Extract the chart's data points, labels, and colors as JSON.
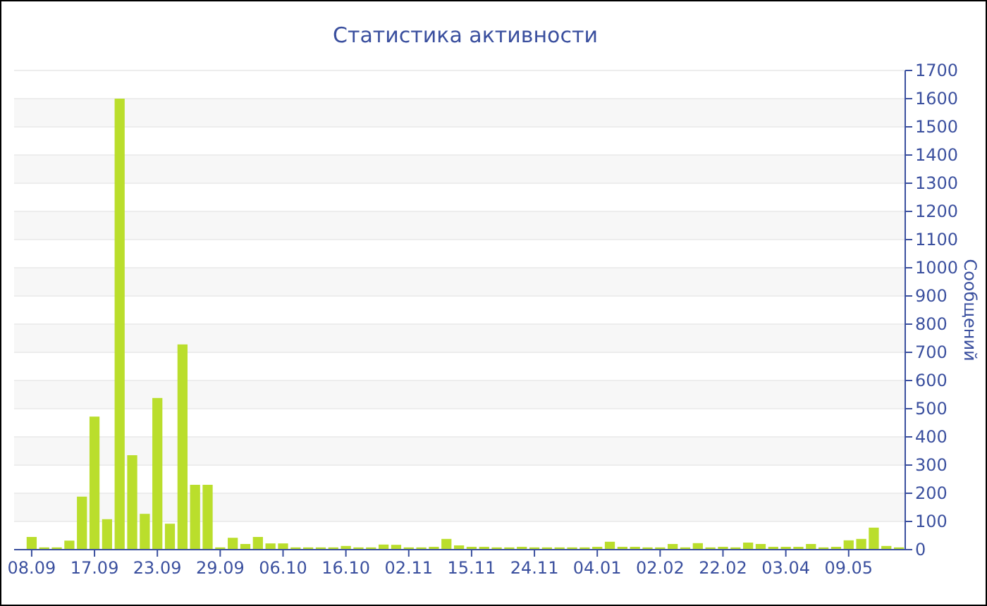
{
  "chart_data": {
    "type": "bar",
    "title": "Статистика активности",
    "ylabel": "Сообщений",
    "color": "#bade2c",
    "categories": [
      "08.09",
      null,
      null,
      null,
      null,
      "17.09",
      null,
      null,
      null,
      null,
      "23.09",
      null,
      null,
      null,
      null,
      "29.09",
      null,
      null,
      null,
      null,
      "06.10",
      null,
      null,
      null,
      null,
      "16.10",
      null,
      null,
      null,
      null,
      "02.11",
      null,
      null,
      null,
      null,
      "15.11",
      null,
      null,
      null,
      null,
      "24.11",
      null,
      null,
      null,
      null,
      "04.01",
      null,
      null,
      null,
      null,
      "02.02",
      null,
      null,
      null,
      null,
      "22.02",
      null,
      null,
      null,
      null,
      "03.04",
      null,
      null,
      null,
      null,
      "09.05",
      null,
      null,
      null,
      null
    ],
    "values": [
      45,
      8,
      8,
      32,
      188,
      472,
      108,
      1600,
      335,
      127,
      538,
      92,
      728,
      230,
      230,
      8,
      42,
      20,
      45,
      22,
      22,
      8,
      8,
      8,
      8,
      13,
      8,
      8,
      18,
      17,
      8,
      8,
      10,
      38,
      15,
      10,
      10,
      8,
      8,
      10,
      8,
      8,
      8,
      8,
      8,
      10,
      28,
      10,
      10,
      8,
      8,
      20,
      8,
      23,
      8,
      10,
      8,
      25,
      20,
      10,
      10,
      10,
      20,
      8,
      10,
      33,
      38,
      78,
      13,
      8
    ],
    "ylim": [
      0,
      1700
    ],
    "yticks": [
      0,
      100,
      200,
      300,
      400,
      500,
      600,
      700,
      800,
      900,
      1000,
      1100,
      1200,
      1300,
      1400,
      1500,
      1600,
      1700
    ],
    "grid": true
  }
}
